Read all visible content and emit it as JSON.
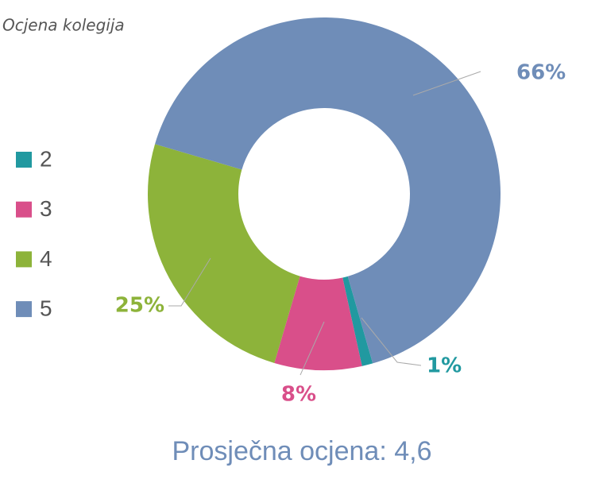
{
  "chart_data": {
    "type": "donut",
    "title": "Ocjena kolegija",
    "categories": [
      "2",
      "3",
      "4",
      "5"
    ],
    "values": [
      1,
      8,
      25,
      66
    ],
    "value_labels": [
      "1%",
      "8%",
      "25%",
      "66%"
    ],
    "colors": [
      "#2199a0",
      "#d94f8a",
      "#8db33a",
      "#6f8db8"
    ],
    "legend": "left",
    "footer": "Prosječna ocjena: 4,6"
  }
}
